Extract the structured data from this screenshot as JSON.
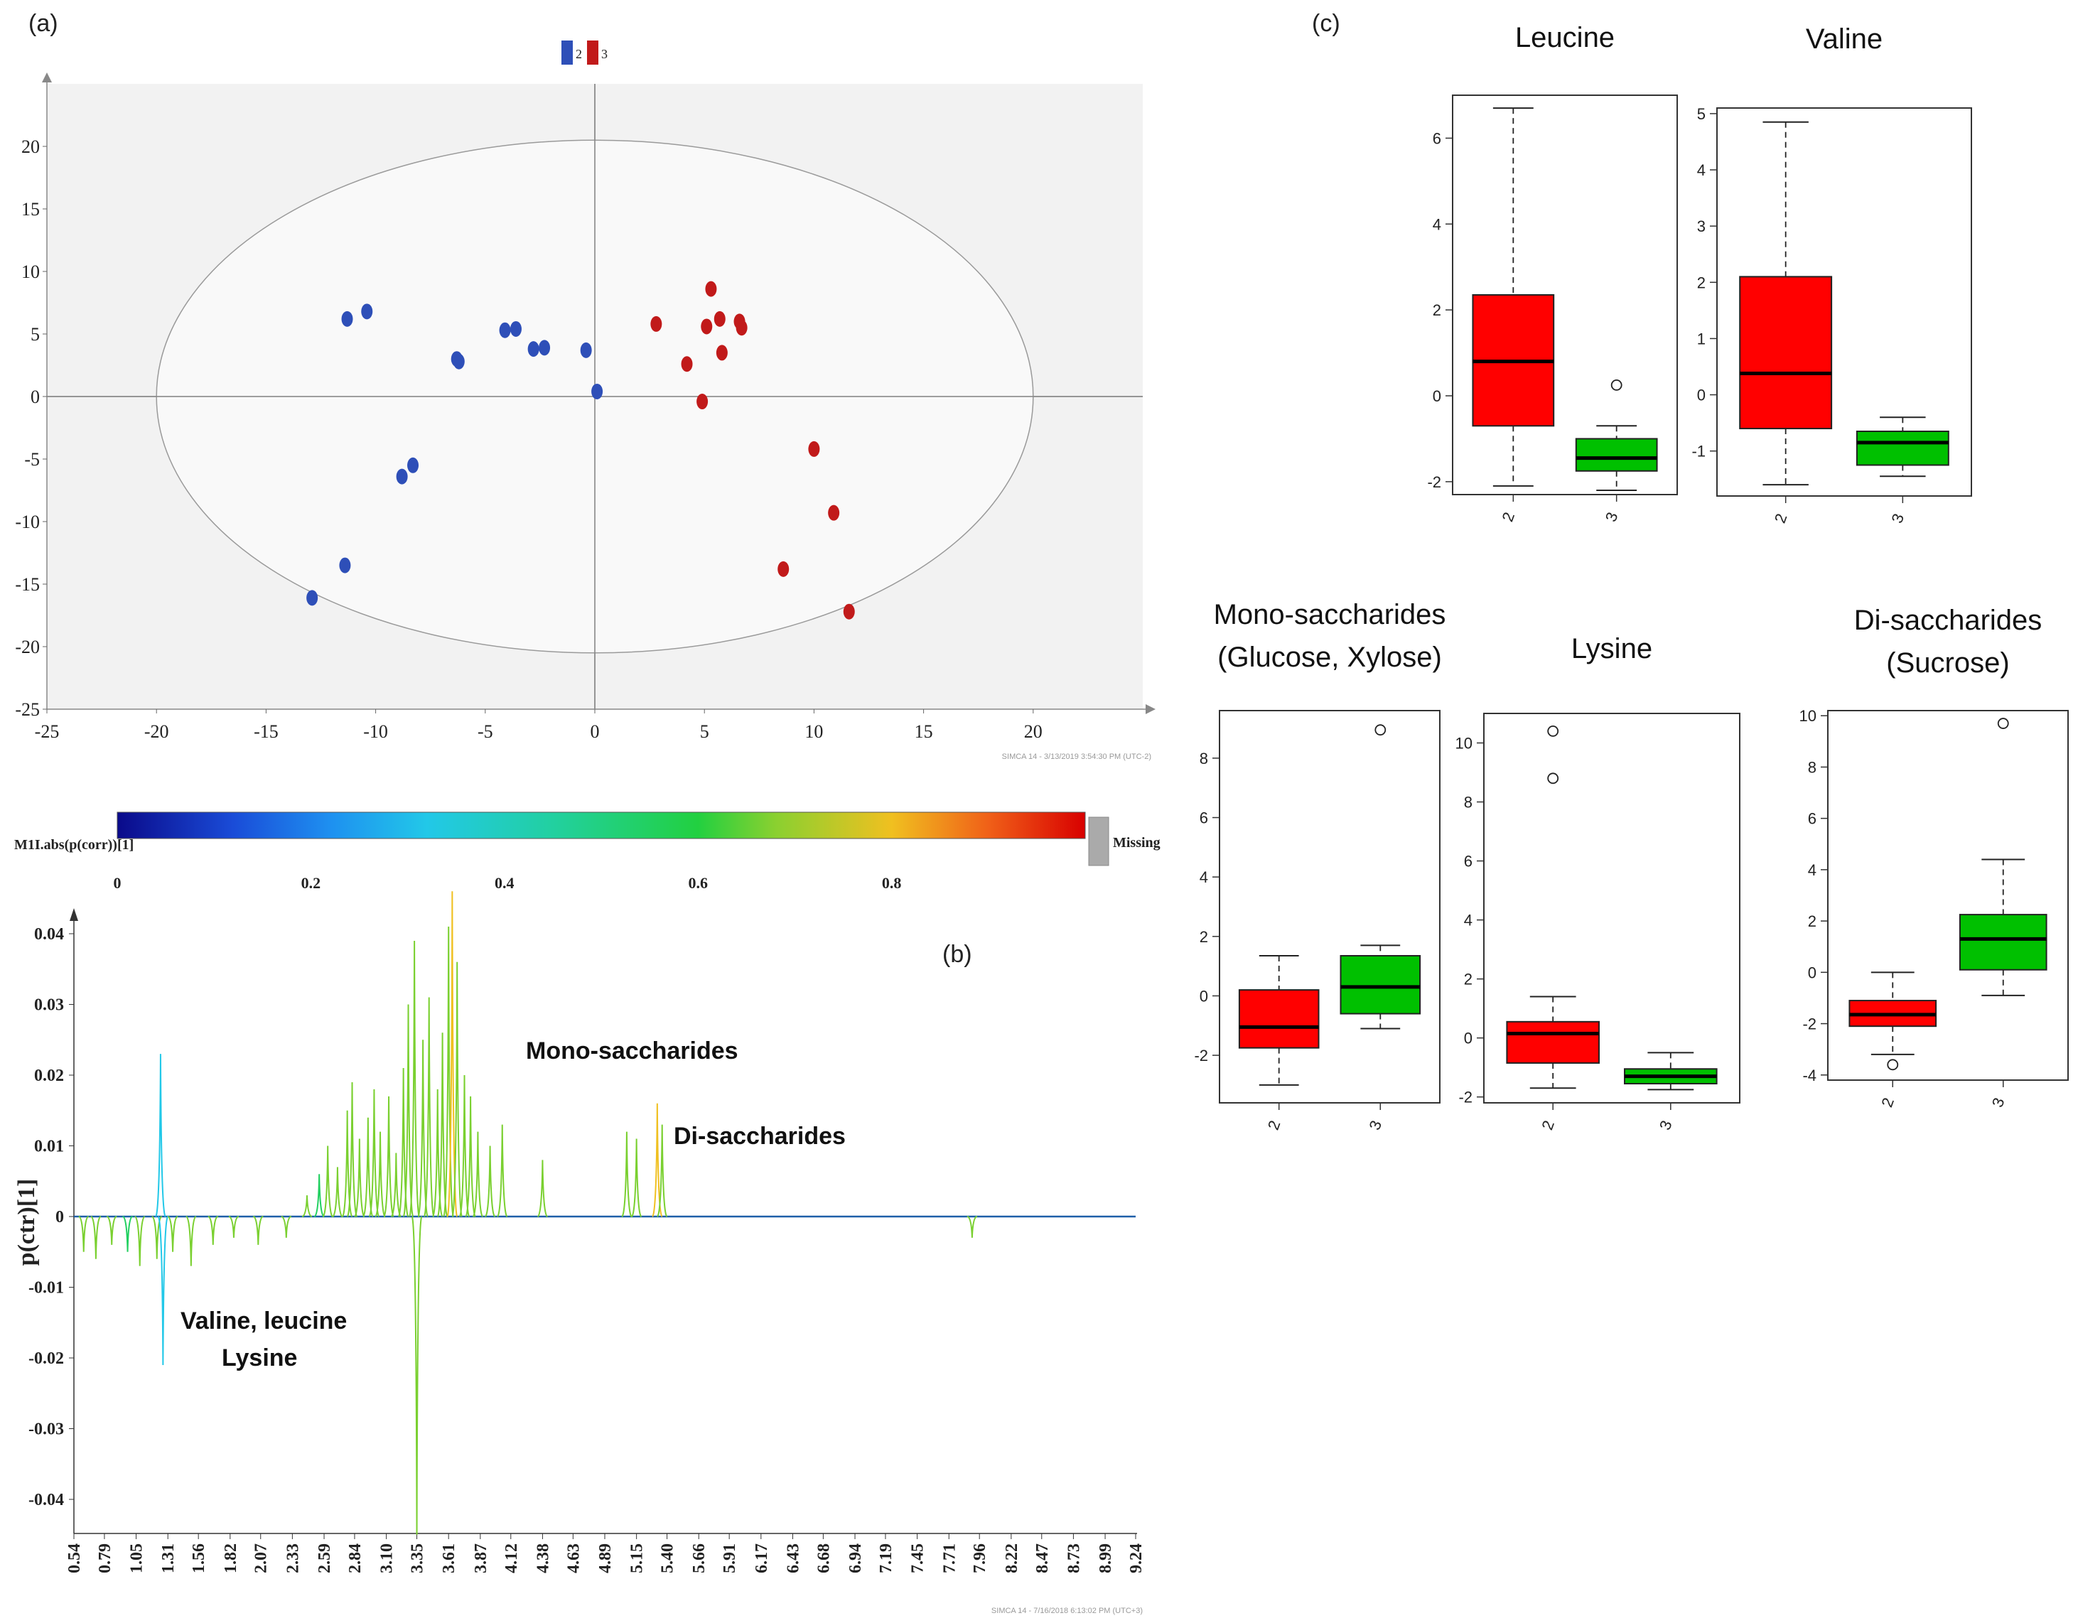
{
  "panels": {
    "a": {
      "label": "(a)",
      "legend": [
        {
          "name": "2",
          "color": "#2E4FB8"
        },
        {
          "name": "3",
          "color": "#C11A1A"
        }
      ],
      "stamp": "SIMCA 14 - 3/13/2019 3:54:30 PM (UTC-2)"
    },
    "b": {
      "label": "(b)",
      "colorbar_label": "M1I.abs(p(corr))[1]",
      "colorbar_missing": "Missing",
      "colorbar_ticks": [
        "0",
        "0.2",
        "0.4",
        "0.6",
        "0.8"
      ],
      "ylabel": "p(ctr)[1]",
      "annotations": {
        "mono": "Mono-saccharides",
        "di": "Di-saccharides",
        "valine": "Valine, leucine",
        "lysine": "Lysine"
      },
      "stamp": "SIMCA 14 - 7/16/2018 6:13:02 PM (UTC+3)"
    },
    "c": {
      "label": "(c)"
    }
  },
  "chart_data": [
    {
      "type": "scatter",
      "title": "",
      "xlabel": "",
      "ylabel": "",
      "xlim": [
        -25,
        25
      ],
      "ylim": [
        -25,
        25
      ],
      "xticks": [
        "-25",
        "-20",
        "-15",
        "-10",
        "-5",
        "0",
        "5",
        "10",
        "15",
        "20"
      ],
      "yticks": [
        "-25",
        "-20",
        "-15",
        "-10",
        "-5",
        "0",
        "5",
        "10",
        "15",
        "20"
      ],
      "grid": false,
      "legend_position": "top-center",
      "ellipse": {
        "rx": 20,
        "ry": 20.5
      },
      "series": [
        {
          "name": "2",
          "color": "#2E4FB8",
          "points": [
            [
              -11.3,
              6.2
            ],
            [
              -10.4,
              6.8
            ],
            [
              -6.3,
              3.0
            ],
            [
              -6.2,
              2.8
            ],
            [
              -4.1,
              5.3
            ],
            [
              -3.6,
              5.4
            ],
            [
              -2.8,
              3.8
            ],
            [
              -2.3,
              3.9
            ],
            [
              -0.4,
              3.7
            ],
            [
              0.1,
              0.4
            ],
            [
              -8.8,
              -6.4
            ],
            [
              -8.3,
              -5.5
            ],
            [
              -11.4,
              -13.5
            ],
            [
              -12.9,
              -16.1
            ]
          ]
        },
        {
          "name": "3",
          "color": "#C11A1A",
          "points": [
            [
              2.8,
              5.8
            ],
            [
              5.3,
              8.6
            ],
            [
              5.1,
              5.6
            ],
            [
              5.7,
              6.2
            ],
            [
              6.6,
              6.0
            ],
            [
              6.7,
              5.5
            ],
            [
              4.2,
              2.6
            ],
            [
              5.8,
              3.5
            ],
            [
              4.9,
              -0.4
            ],
            [
              10.0,
              -4.2
            ],
            [
              10.9,
              -9.3
            ],
            [
              8.6,
              -13.8
            ],
            [
              11.6,
              -17.2
            ]
          ]
        }
      ]
    },
    {
      "type": "line",
      "title": "",
      "xlabel": "",
      "ylabel": "p(ctr)[1]",
      "xlim": [
        0.54,
        9.24
      ],
      "ylim": [
        -0.045,
        0.045
      ],
      "yticks": [
        "0.04",
        "0.03",
        "0.02",
        "0.01",
        "0",
        "-0.01",
        "-0.02",
        "-0.03",
        "-0.04"
      ],
      "xticks": [
        "0.54",
        "0.79",
        "1.05",
        "1.31",
        "1.56",
        "1.82",
        "2.07",
        "2.33",
        "2.59",
        "2.84",
        "3.10",
        "3.35",
        "3.61",
        "3.87",
        "4.12",
        "4.38",
        "4.63",
        "4.89",
        "5.15",
        "5.40",
        "5.66",
        "5.91",
        "6.17",
        "6.43",
        "6.68",
        "6.94",
        "7.19",
        "7.45",
        "7.71",
        "7.96",
        "8.22",
        "8.47",
        "8.73",
        "8.99",
        "9.24"
      ],
      "color_scale": {
        "min": 0,
        "max": 1,
        "colors": [
          "#0A0A8A",
          "#1A5CE0",
          "#22C8E8",
          "#22D060",
          "#7AD030",
          "#F0C020",
          "#E83010",
          "#D00000"
        ]
      },
      "peaks": [
        {
          "x": 0.62,
          "y": -0.005,
          "c": 0.5
        },
        {
          "x": 0.72,
          "y": -0.006,
          "c": 0.55
        },
        {
          "x": 0.85,
          "y": -0.004,
          "c": 0.5
        },
        {
          "x": 0.98,
          "y": -0.005,
          "c": 0.45
        },
        {
          "x": 1.08,
          "y": -0.007,
          "c": 0.5
        },
        {
          "x": 1.22,
          "y": -0.006,
          "c": 0.55
        },
        {
          "x": 1.25,
          "y": 0.023,
          "c": 0.25
        },
        {
          "x": 1.27,
          "y": -0.021,
          "c": 0.25
        },
        {
          "x": 1.35,
          "y": -0.005,
          "c": 0.5
        },
        {
          "x": 1.5,
          "y": -0.007,
          "c": 0.6
        },
        {
          "x": 1.68,
          "y": -0.004,
          "c": 0.55
        },
        {
          "x": 1.85,
          "y": -0.003,
          "c": 0.6
        },
        {
          "x": 2.05,
          "y": -0.004,
          "c": 0.5
        },
        {
          "x": 2.28,
          "y": -0.003,
          "c": 0.55
        },
        {
          "x": 2.45,
          "y": 0.003,
          "c": 0.5
        },
        {
          "x": 2.55,
          "y": 0.006,
          "c": 0.45
        },
        {
          "x": 2.62,
          "y": 0.01,
          "c": 0.5
        },
        {
          "x": 2.7,
          "y": 0.007,
          "c": 0.6
        },
        {
          "x": 2.78,
          "y": 0.015,
          "c": 0.55
        },
        {
          "x": 2.82,
          "y": 0.019,
          "c": 0.5
        },
        {
          "x": 2.88,
          "y": 0.011,
          "c": 0.6
        },
        {
          "x": 2.95,
          "y": 0.014,
          "c": 0.55
        },
        {
          "x": 3.0,
          "y": 0.018,
          "c": 0.5
        },
        {
          "x": 3.05,
          "y": 0.012,
          "c": 0.55
        },
        {
          "x": 3.12,
          "y": 0.017,
          "c": 0.5
        },
        {
          "x": 3.18,
          "y": 0.009,
          "c": 0.55
        },
        {
          "x": 3.24,
          "y": 0.021,
          "c": 0.5
        },
        {
          "x": 3.28,
          "y": 0.03,
          "c": 0.55
        },
        {
          "x": 3.33,
          "y": 0.039,
          "c": 0.5
        },
        {
          "x": 3.35,
          "y": -0.045,
          "c": 0.5
        },
        {
          "x": 3.4,
          "y": 0.025,
          "c": 0.55
        },
        {
          "x": 3.45,
          "y": 0.031,
          "c": 0.5
        },
        {
          "x": 3.52,
          "y": 0.018,
          "c": 0.55
        },
        {
          "x": 3.56,
          "y": 0.026,
          "c": 0.5
        },
        {
          "x": 3.61,
          "y": 0.041,
          "c": 0.55
        },
        {
          "x": 3.64,
          "y": 0.046,
          "c": 0.7
        },
        {
          "x": 3.68,
          "y": 0.036,
          "c": 0.5
        },
        {
          "x": 3.74,
          "y": 0.02,
          "c": 0.55
        },
        {
          "x": 3.79,
          "y": 0.017,
          "c": 0.5
        },
        {
          "x": 3.85,
          "y": 0.012,
          "c": 0.55
        },
        {
          "x": 3.95,
          "y": 0.01,
          "c": 0.6
        },
        {
          "x": 4.05,
          "y": 0.013,
          "c": 0.55
        },
        {
          "x": 4.38,
          "y": 0.008,
          "c": 0.55
        },
        {
          "x": 5.07,
          "y": 0.012,
          "c": 0.6
        },
        {
          "x": 5.15,
          "y": 0.011,
          "c": 0.55
        },
        {
          "x": 5.32,
          "y": 0.016,
          "c": 0.65
        },
        {
          "x": 5.36,
          "y": 0.013,
          "c": 0.6
        },
        {
          "x": 7.9,
          "y": -0.003,
          "c": 0.55
        }
      ]
    },
    {
      "type": "box",
      "title": "Leucine",
      "categories": [
        "2",
        "3"
      ],
      "ylim": [
        -2.3,
        7.0
      ],
      "yticks": [
        -2,
        0,
        2,
        4,
        6
      ],
      "boxes": [
        {
          "category": "2",
          "color": "#FF0000",
          "min": -2.1,
          "q1": -0.7,
          "median": 0.8,
          "q3": 2.35,
          "max": 6.7,
          "outliers": []
        },
        {
          "category": "3",
          "color": "#00C000",
          "min": -2.2,
          "q1": -1.75,
          "median": -1.45,
          "q3": -1.0,
          "max": -0.7,
          "outliers": [
            0.25
          ]
        }
      ]
    },
    {
      "type": "box",
      "title": "Valine",
      "categories": [
        "2",
        "3"
      ],
      "ylim": [
        -1.8,
        5.1
      ],
      "yticks": [
        -1,
        0,
        1,
        2,
        3,
        4,
        5
      ],
      "boxes": [
        {
          "category": "2",
          "color": "#FF0000",
          "min": -1.6,
          "q1": -0.6,
          "median": 0.38,
          "q3": 2.1,
          "max": 4.85,
          "outliers": []
        },
        {
          "category": "3",
          "color": "#00C000",
          "min": -1.45,
          "q1": -1.25,
          "median": -0.85,
          "q3": -0.65,
          "max": -0.4,
          "outliers": []
        }
      ]
    },
    {
      "type": "box",
      "title": [
        "Mono-saccharides",
        "(Glucose, Xylose)"
      ],
      "categories": [
        "2",
        "3"
      ],
      "ylim": [
        -3.6,
        9.6
      ],
      "yticks": [
        -2,
        0,
        2,
        4,
        6,
        8
      ],
      "boxes": [
        {
          "category": "2",
          "color": "#FF0000",
          "min": -3.0,
          "q1": -1.75,
          "median": -1.05,
          "q3": 0.2,
          "max": 1.35,
          "outliers": []
        },
        {
          "category": "3",
          "color": "#00C000",
          "min": -1.1,
          "q1": -0.6,
          "median": 0.3,
          "q3": 1.35,
          "max": 1.7,
          "outliers": [
            8.95
          ]
        }
      ]
    },
    {
      "type": "box",
      "title": "Lysine",
      "categories": [
        "2",
        "3"
      ],
      "ylim": [
        -2.2,
        11.0
      ],
      "yticks": [
        -2,
        0,
        2,
        4,
        6,
        8,
        10
      ],
      "boxes": [
        {
          "category": "2",
          "color": "#FF0000",
          "min": -1.7,
          "q1": -0.85,
          "median": 0.15,
          "q3": 0.55,
          "max": 1.4,
          "outliers": [
            10.4,
            8.8
          ]
        },
        {
          "category": "3",
          "color": "#00C000",
          "min": -1.75,
          "q1": -1.55,
          "median": -1.3,
          "q3": -1.05,
          "max": -0.5,
          "outliers": []
        }
      ]
    },
    {
      "type": "box",
      "title": [
        "Di-saccharides",
        "(Sucrose)"
      ],
      "categories": [
        "2",
        "3"
      ],
      "ylim": [
        -4.2,
        10.2
      ],
      "yticks": [
        -4,
        -2,
        0,
        2,
        4,
        6,
        8,
        10
      ],
      "boxes": [
        {
          "category": "2",
          "color": "#FF0000",
          "min": -3.2,
          "q1": -2.1,
          "median": -1.65,
          "q3": -1.1,
          "max": 0.0,
          "outliers": [
            -3.6
          ]
        },
        {
          "category": "3",
          "color": "#00C000",
          "min": -0.9,
          "q1": 0.1,
          "median": 1.3,
          "q3": 2.25,
          "max": 4.4,
          "outliers": [
            9.7
          ]
        }
      ]
    }
  ]
}
